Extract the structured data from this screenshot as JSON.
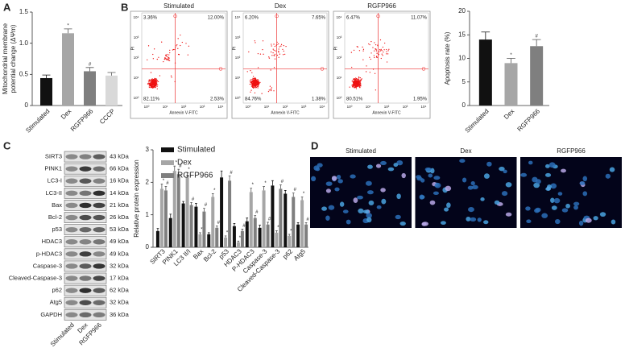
{
  "panel_labels": [
    "A",
    "B",
    "C",
    "D"
  ],
  "chart_data": [
    {
      "type": "bar",
      "ylabel": [
        "Mitochondrial membrane",
        "potential change (ΔΨm)"
      ],
      "categories": [
        "Stimulated",
        "Dex",
        "RGFP966",
        "CCCP"
      ],
      "values": [
        0.44,
        1.16,
        0.55,
        0.48
      ],
      "errors": [
        0.05,
        0.07,
        0.06,
        0.05
      ],
      "significance": [
        null,
        "*",
        "#",
        null
      ],
      "colors": [
        "#111111",
        "#a6a6a6",
        "#7f7f7f",
        "#d9d9d9"
      ],
      "ylim": [
        0,
        1.5
      ],
      "yticks": [
        0,
        0.5,
        {
          "value": 1,
          "label": "1.0"
        },
        1.5
      ]
    },
    {
      "type": "bar",
      "ylabel": [
        "Apoptosis rate (%)"
      ],
      "categories": [
        "Stimulated",
        "Dex",
        "RGFP966"
      ],
      "values": [
        14.0,
        9.0,
        12.6
      ],
      "errors": [
        1.6,
        1.0,
        1.4
      ],
      "significance": [
        null,
        "*",
        "#"
      ],
      "colors": [
        "#111111",
        "#a6a6a6",
        "#7f7f7f"
      ],
      "ylim": [
        0,
        20
      ],
      "yticks": [
        0,
        5,
        10,
        15,
        20
      ]
    },
    {
      "type": "bar",
      "ylabel": [
        "Relative protein expression"
      ],
      "categories": [
        "SIRT3",
        "PINK1",
        "LC3 II/I",
        "Bax",
        "Bcl-2",
        "p53",
        "HDAC3",
        "P-HDAC3",
        "Caspase-3",
        "Cleaved-Caspase-3",
        "p62",
        "Atg5"
      ],
      "series": [
        {
          "name": "Stimulated",
          "color": "#111111",
          "significance": null,
          "values": [
            0.5,
            0.9,
            1.35,
            1.25,
            0.4,
            2.15,
            0.65,
            0.8,
            0.6,
            1.9,
            1.65,
            0.7
          ],
          "errors": [
            0.08,
            0.12,
            0.06,
            0.1,
            0.05,
            0.2,
            0.08,
            0.1,
            0.08,
            0.15,
            0.1,
            0.06
          ]
        },
        {
          "name": "Dex",
          "color": "#a6a6a6",
          "significance": "*",
          "values": [
            1.8,
            2.35,
            2.15,
            0.4,
            1.55,
            0.3,
            0.15,
            1.7,
            1.75,
            0.45,
            0.35,
            1.45
          ],
          "errors": [
            0.15,
            0.15,
            0.15,
            0.05,
            0.1,
            0.05,
            0.04,
            0.12,
            0.12,
            0.06,
            0.05,
            0.1
          ]
        },
        {
          "name": "RGFP966",
          "color": "#7f7f7f",
          "significance": "#",
          "values": [
            1.75,
            2.25,
            1.3,
            1.1,
            0.6,
            2.05,
            0.5,
            0.9,
            0.7,
            1.8,
            1.55,
            0.7
          ],
          "errors": [
            0.12,
            0.15,
            0.08,
            0.1,
            0.06,
            0.15,
            0.06,
            0.08,
            0.07,
            0.12,
            0.12,
            0.06
          ]
        }
      ],
      "ylim": [
        0,
        3
      ],
      "yticks": [
        0,
        1,
        2,
        3
      ],
      "legend": "top-left"
    }
  ],
  "flow_cytometry": {
    "xlabel": "Annexin V-FITC",
    "ylabel": "PI",
    "ticks": [
      "10⁰",
      "10¹",
      "10²",
      "10³",
      "10⁴"
    ],
    "plots": [
      {
        "title": "Stimulated",
        "quadrants": [
          "3.36%",
          "12.00%",
          "82.11%",
          "2.53%"
        ]
      },
      {
        "title": "Dex",
        "quadrants": [
          "6.20%",
          "7.65%",
          "84.76%",
          "1.38%"
        ]
      },
      {
        "title": "RGFP966",
        "quadrants": [
          "6.47%",
          "11.07%",
          "80.51%",
          "1.95%"
        ]
      }
    ]
  },
  "western_blot": {
    "lanes": [
      "Stimulated",
      "Dex",
      "RGFP966"
    ],
    "rows": [
      [
        "SIRT3",
        "43 kDa"
      ],
      [
        "PINK1",
        "66 kDa"
      ],
      [
        "LC3-I",
        "16 kDa"
      ],
      [
        "LC3-II",
        "14 kDa"
      ],
      [
        "Bax",
        "21 kDa"
      ],
      [
        "Bcl-2",
        "26 kDa"
      ],
      [
        "p53",
        "53 kDa"
      ],
      [
        "HDAC3",
        "49 kDa"
      ],
      [
        "p-HDAC3",
        "49 kDa"
      ],
      [
        "Caspase-3",
        "32 kDa"
      ],
      [
        "Cleaved-Caspase-3",
        "17 kDa"
      ],
      [
        "p62",
        "62 kDa"
      ],
      [
        "Atg5",
        "32 kDa"
      ],
      [
        "GAPDH",
        "36 kDa"
      ]
    ]
  },
  "fluorescence": {
    "titles": [
      "Stimulated",
      "Dex",
      "RGFP966"
    ]
  }
}
